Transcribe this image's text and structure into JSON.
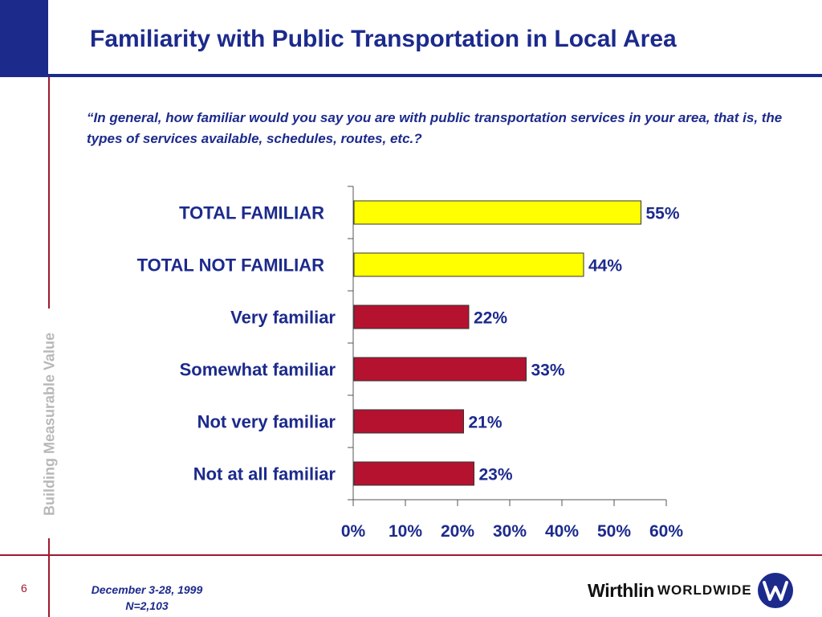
{
  "slide": {
    "title": "Familiarity with Public Transportation in Local Area",
    "question": "“In general, how familiar would you say you are with public transportation services in your area, that is, the types of services available, schedules, routes, etc.?",
    "tagline": "Building Measurable Value",
    "page_number": "6",
    "date": "December 3-28, 1999",
    "sample": "N=2,103",
    "logo_word": "Wirthlin",
    "logo_sub": "WORLDWIDE"
  },
  "chart_data": {
    "type": "bar",
    "orientation": "horizontal",
    "categories": [
      "TOTAL FAMILIAR",
      "TOTAL NOT FAMILIAR",
      "Very familiar",
      "Somewhat familiar",
      "Not very familiar",
      "Not at all familiar"
    ],
    "values": [
      55,
      44,
      22,
      33,
      21,
      23
    ],
    "value_labels": [
      "55%",
      "44%",
      "22%",
      "33%",
      "21%",
      "23%"
    ],
    "xlim": [
      0,
      60
    ],
    "x_ticks": [
      "0%",
      "10%",
      "20%",
      "30%",
      "40%",
      "50%",
      "60%"
    ],
    "grid": false,
    "colors": {
      "total": "#ffff00",
      "detail": "#b5122f",
      "bar_border": "#333333",
      "text": "#1c2a8c"
    }
  }
}
